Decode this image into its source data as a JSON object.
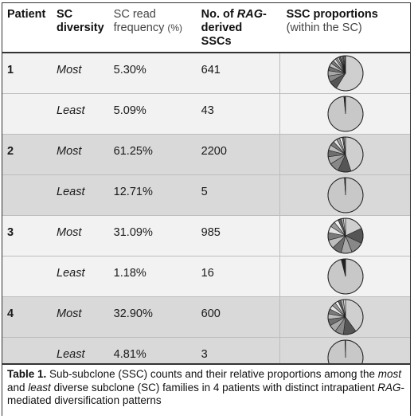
{
  "headers": {
    "patient": "Patient",
    "sc_diversity_1": "SC",
    "sc_diversity_2": "diversity",
    "freq_1": "SC read",
    "freq_2": "frequency",
    "freq_unit": "(%)",
    "ssc_1": "No. of",
    "ssc_rag": "RAG",
    "ssc_1b": "-",
    "ssc_2": "derived SSCs",
    "prop_1": "SSC proportions",
    "prop_2": "(within the SC)"
  },
  "rows": [
    {
      "patient": "1",
      "diversity": "Most",
      "frequency": "5.30%",
      "sscs": "641",
      "shade": false,
      "pie": [
        0.6,
        0.08,
        0.06,
        0.05,
        0.04,
        0.035,
        0.03,
        0.025,
        0.02,
        0.015,
        0.015,
        0.01,
        0.01,
        0.01,
        0.01,
        0.01
      ]
    },
    {
      "patient": "",
      "diversity": "Least",
      "frequency": "5.09%",
      "sscs": "43",
      "shade": false,
      "pie": [
        0.985,
        0.015
      ]
    },
    {
      "patient": "2",
      "diversity": "Most",
      "frequency": "61.25%",
      "sscs": "2200",
      "shade": true,
      "pie": [
        0.45,
        0.12,
        0.09,
        0.07,
        0.06,
        0.05,
        0.04,
        0.035,
        0.03,
        0.025,
        0.015,
        0.015
      ]
    },
    {
      "patient": "",
      "diversity": "Least",
      "frequency": "12.71%",
      "sscs": "5",
      "shade": true,
      "pie": [
        0.99,
        0.01
      ]
    },
    {
      "patient": "3",
      "diversity": "Most",
      "frequency": "31.09%",
      "sscs": "985",
      "shade": false,
      "pie": [
        0.18,
        0.14,
        0.12,
        0.1,
        0.09,
        0.08,
        0.07,
        0.06,
        0.05,
        0.04,
        0.03,
        0.02,
        0.02
      ]
    },
    {
      "patient": "",
      "diversity": "Least",
      "frequency": "1.18%",
      "sscs": "16",
      "shade": false,
      "pie": [
        0.96,
        0.02,
        0.02
      ]
    },
    {
      "patient": "4",
      "diversity": "Most",
      "frequency": "32.90%",
      "sscs": "600",
      "shade": true,
      "pie": [
        0.4,
        0.12,
        0.08,
        0.07,
        0.06,
        0.05,
        0.045,
        0.04,
        0.035,
        0.03,
        0.025,
        0.025,
        0.02
      ]
    },
    {
      "patient": "",
      "diversity": "Least",
      "frequency": "4.81%",
      "sscs": "3",
      "shade": true,
      "pie": [
        0.995,
        0.005
      ]
    }
  ],
  "caption": {
    "label": "Table 1.",
    "p1": " Sub-subclone (SSC) counts and their relative proportions among the ",
    "most": "most",
    "p2": " and ",
    "least": "least",
    "p3": " diverse subclone (SC) families in 4 patients with distinct intrapatient ",
    "rag": "RAG",
    "p4": "-mediated diversification patterns"
  },
  "colors": {
    "pie_palette": [
      "#cfcfcf",
      "#555555",
      "#888888",
      "#a8a8a8",
      "#6e6e6e",
      "#bdbdbd",
      "#7a7a7a",
      "#e3e3e3",
      "#9a9a9a",
      "#f0f0f0",
      "#606060",
      "#b0b0b0",
      "#d8d8d8",
      "#858585",
      "#c4c4c4",
      "#4a4a4a"
    ],
    "least_main": "#c8c8c8"
  }
}
